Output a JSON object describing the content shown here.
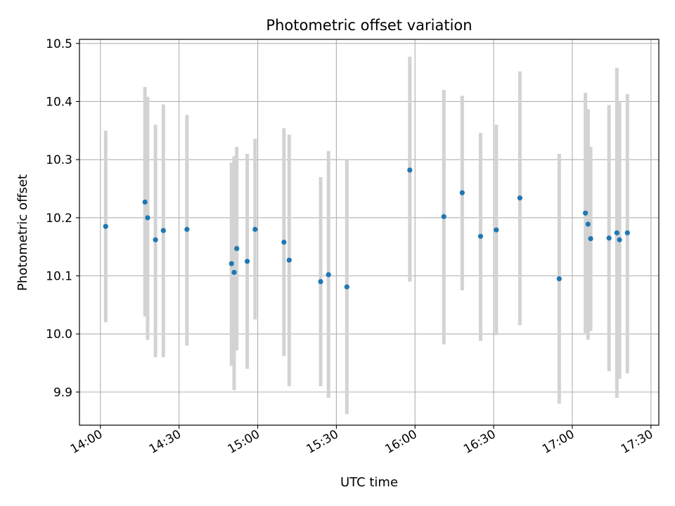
{
  "chart_data": {
    "type": "scatter",
    "title": "Photometric offset variation",
    "xlabel": "UTC time",
    "ylabel": "Photometric offset",
    "xlim": [
      "13:52",
      "17:33"
    ],
    "ylim": [
      9.843,
      10.507
    ],
    "xticks": [
      "14:00",
      "14:30",
      "15:00",
      "15:30",
      "16:00",
      "16:30",
      "17:00",
      "17:30"
    ],
    "yticks": [
      "9.9",
      "10.0",
      "10.1",
      "10.2",
      "10.3",
      "10.4",
      "10.5"
    ],
    "grid": true,
    "colors": {
      "point": "#1f77b4",
      "errorbar": "#d3d3d3",
      "grid": "#b0b0b0"
    },
    "series": [
      {
        "points": [
          {
            "x": "14:02",
            "y": 10.185,
            "ylow": 10.02,
            "yhigh": 10.35
          },
          {
            "x": "14:17",
            "y": 10.227,
            "ylow": 10.03,
            "yhigh": 10.425
          },
          {
            "x": "14:18",
            "y": 10.2,
            "ylow": 9.99,
            "yhigh": 10.408
          },
          {
            "x": "14:21",
            "y": 10.162,
            "ylow": 9.96,
            "yhigh": 10.36
          },
          {
            "x": "14:24",
            "y": 10.178,
            "ylow": 9.96,
            "yhigh": 10.395
          },
          {
            "x": "14:33",
            "y": 10.18,
            "ylow": 9.98,
            "yhigh": 10.377
          },
          {
            "x": "14:50",
            "y": 10.121,
            "ylow": 9.945,
            "yhigh": 10.295
          },
          {
            "x": "14:51",
            "y": 10.106,
            "ylow": 9.903,
            "yhigh": 10.306
          },
          {
            "x": "14:52",
            "y": 10.147,
            "ylow": 9.972,
            "yhigh": 10.322
          },
          {
            "x": "14:56",
            "y": 10.125,
            "ylow": 9.94,
            "yhigh": 10.31
          },
          {
            "x": "14:59",
            "y": 10.18,
            "ylow": 10.025,
            "yhigh": 10.336
          },
          {
            "x": "15:10",
            "y": 10.158,
            "ylow": 9.962,
            "yhigh": 10.354
          },
          {
            "x": "15:12",
            "y": 10.127,
            "ylow": 9.91,
            "yhigh": 10.343
          },
          {
            "x": "15:24",
            "y": 10.09,
            "ylow": 9.91,
            "yhigh": 10.27
          },
          {
            "x": "15:27",
            "y": 10.102,
            "ylow": 9.89,
            "yhigh": 10.315
          },
          {
            "x": "15:34",
            "y": 10.081,
            "ylow": 9.862,
            "yhigh": 10.3
          },
          {
            "x": "15:58",
            "y": 10.282,
            "ylow": 10.09,
            "yhigh": 10.477
          },
          {
            "x": "16:11",
            "y": 10.202,
            "ylow": 9.982,
            "yhigh": 10.42
          },
          {
            "x": "16:18",
            "y": 10.243,
            "ylow": 10.075,
            "yhigh": 10.41
          },
          {
            "x": "16:25",
            "y": 10.168,
            "ylow": 9.988,
            "yhigh": 10.346
          },
          {
            "x": "16:31",
            "y": 10.179,
            "ylow": 9.998,
            "yhigh": 10.36
          },
          {
            "x": "16:40",
            "y": 10.234,
            "ylow": 10.015,
            "yhigh": 10.452
          },
          {
            "x": "16:55",
            "y": 10.095,
            "ylow": 9.88,
            "yhigh": 10.31
          },
          {
            "x": "17:05",
            "y": 10.208,
            "ylow": 10.002,
            "yhigh": 10.415
          },
          {
            "x": "17:06",
            "y": 10.189,
            "ylow": 9.99,
            "yhigh": 10.387
          },
          {
            "x": "17:07",
            "y": 10.164,
            "ylow": 10.005,
            "yhigh": 10.322
          },
          {
            "x": "17:14",
            "y": 10.165,
            "ylow": 9.936,
            "yhigh": 10.394
          },
          {
            "x": "17:17",
            "y": 10.174,
            "ylow": 9.89,
            "yhigh": 10.458
          },
          {
            "x": "17:18",
            "y": 10.162,
            "ylow": 9.923,
            "yhigh": 10.4
          },
          {
            "x": "17:21",
            "y": 10.174,
            "ylow": 9.932,
            "yhigh": 10.413
          }
        ]
      }
    ]
  }
}
